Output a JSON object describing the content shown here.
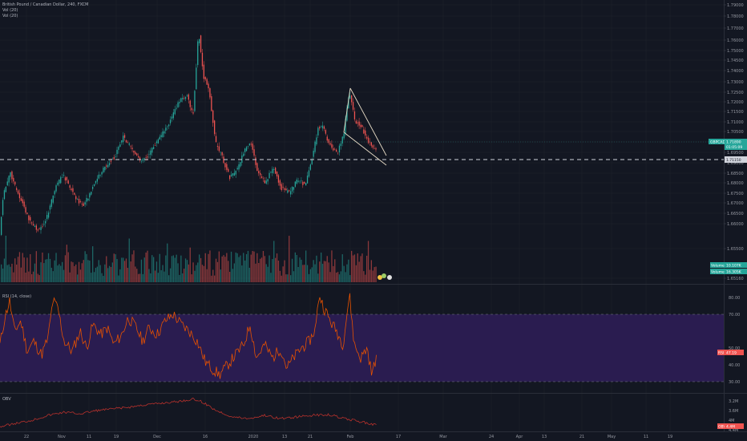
{
  "header": {
    "symbol_title": "British Pound / Canadian Dollar, 240, FXCM",
    "indicator_1": "Vol (20)",
    "indicator_2": "Vol (20)"
  },
  "price_axis": {
    "labels": [
      "1.79000",
      "1.78000",
      "1.77000",
      "1.76000",
      "1.75000",
      "1.74500",
      "1.74000",
      "1.73000",
      "1.72500",
      "1.72000",
      "1.71500",
      "1.71000",
      "1.70500",
      "1.70000",
      "1.69500",
      "1.69000",
      "1.68500",
      "1.68000",
      "1.67500",
      "1.67000",
      "1.66500",
      "1.66000",
      "1.65500",
      "1.65160"
    ],
    "current_tag": "GBPCAD",
    "current_price": "1.71890",
    "countdown": "01:05:09",
    "line_price": "1.71150"
  },
  "volume_tags": {
    "volume_label": "Volume",
    "volume_value": "10.107K",
    "vol_label": "VolumeMA",
    "vol_value": "16.305K"
  },
  "rsi": {
    "label": "RSI (14, close)",
    "axis": [
      "80.00",
      "70.00",
      "50.00",
      "40.00",
      "30.00"
    ],
    "current_tag": "RSI",
    "current_value": "47.19",
    "upper_band": 70,
    "lower_band": 30
  },
  "obv": {
    "label": "OBV",
    "axis": [
      "3.2M",
      "3.6M",
      "4M",
      "4.4M"
    ],
    "current_tag": "OBV",
    "current_value": "4.4M"
  },
  "time_axis": [
    "22",
    "Nov",
    "11",
    "19",
    "Dec",
    "16",
    "2020",
    "13",
    "21",
    "Feb",
    "17",
    "Mar",
    "24",
    "Apr",
    "13",
    "21",
    "May",
    "11",
    "19"
  ],
  "colors": {
    "background": "#131722",
    "bull": "#26a69a",
    "bear": "#ef5350",
    "rsi_line": "#e65100",
    "rsi_band": "#2a1c50",
    "obv_line": "#b7312c",
    "wedge": "#e8dcc6",
    "dashed_line": "#d1d4dc",
    "price_tag": "#26a69a",
    "rsi_tag": "#ef5350"
  }
}
